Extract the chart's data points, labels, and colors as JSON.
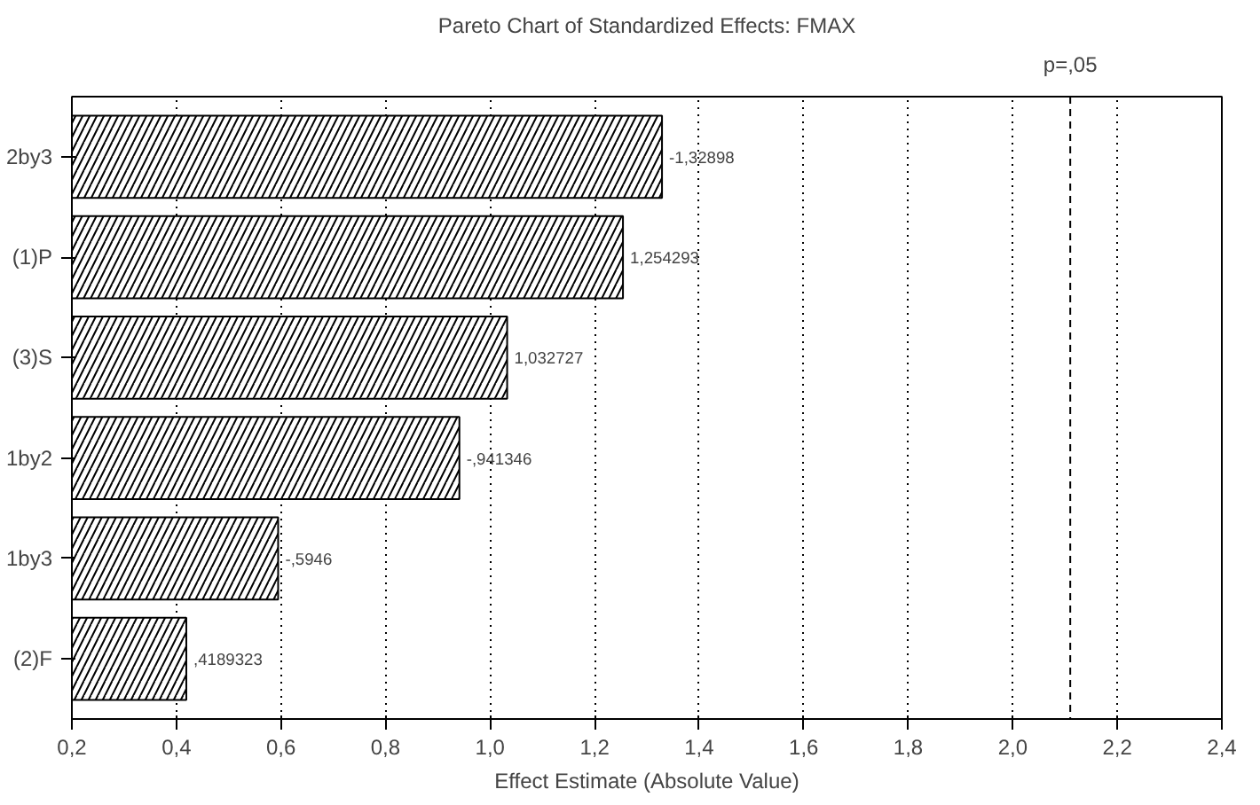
{
  "chart_data": {
    "type": "bar",
    "orientation": "horizontal",
    "title": "Pareto Chart of Standardized Effects: FMAX",
    "xlabel": "Effect Estimate (Absolute Value)",
    "categories": [
      "2by3",
      "(1)P",
      "(3)S",
      "1by2",
      "1by3",
      "(2)F"
    ],
    "values": [
      1.32898,
      1.254293,
      1.032727,
      0.941346,
      0.5946,
      0.4189323
    ],
    "annotations": [
      {
        "text": "-1,32898",
        "x": 1.32898,
        "y": "2by3"
      },
      {
        "text": "1,254293",
        "x": 1.254293,
        "y": "(1)P"
      },
      {
        "text": "1,032727",
        "x": 1.032727,
        "y": "(3)S"
      },
      {
        "text": "-,941346",
        "x": 0.941346,
        "y": "1by2"
      },
      {
        "text": "-,5946",
        "x": 0.5946,
        "y": "1by3"
      },
      {
        "text": ",4189323",
        "x": 0.4189323,
        "y": "(2)F"
      }
    ],
    "color": "#ffffff",
    "xlim": [
      0.2,
      2.4
    ],
    "xticks": [
      {
        "value": 0.2,
        "label": "0,2"
      },
      {
        "value": 0.4,
        "label": "0,4"
      },
      {
        "value": 0.6,
        "label": "0,6"
      },
      {
        "value": 0.8,
        "label": "0,8"
      },
      {
        "value": 1.0,
        "label": "1,0"
      },
      {
        "value": 1.2,
        "label": "1,2"
      },
      {
        "value": 1.4,
        "label": "1,4"
      },
      {
        "value": 1.6,
        "label": "1,6"
      },
      {
        "value": 1.8,
        "label": "1,8"
      },
      {
        "value": 2.0,
        "label": "2,0"
      },
      {
        "value": 2.2,
        "label": "2,2"
      },
      {
        "value": 2.4,
        "label": "2,4"
      }
    ],
    "grid": "x",
    "ref_lines": [
      {
        "axis": "x",
        "value": 2.11,
        "label": "p=,05",
        "line_style": "dashed"
      }
    ]
  }
}
